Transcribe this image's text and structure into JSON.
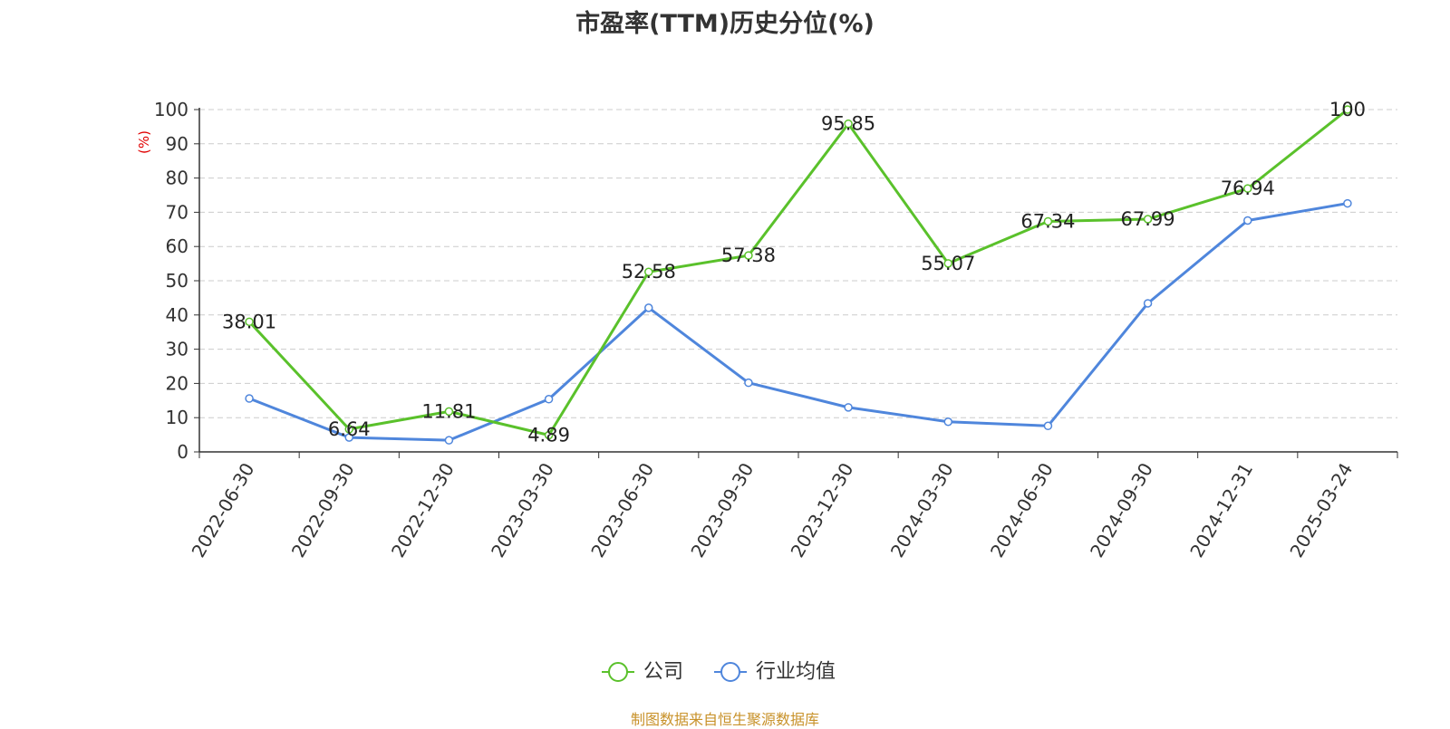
{
  "chart_data": {
    "type": "line",
    "title": "市盈率(TTM)历史分位(%)",
    "ylabel": "(%)",
    "ylim": [
      0,
      100
    ],
    "yticks": [
      0,
      10,
      20,
      30,
      40,
      50,
      60,
      70,
      80,
      90,
      100
    ],
    "grid": "horizontal-dashed",
    "legend_position": "bottom-center",
    "categories": [
      "2022-06-30",
      "2022-09-30",
      "2022-12-30",
      "2023-03-30",
      "2023-06-30",
      "2023-09-30",
      "2023-12-30",
      "2024-03-30",
      "2024-06-30",
      "2024-09-30",
      "2024-12-31",
      "2025-03-24"
    ],
    "series": [
      {
        "name": "公司",
        "color": "#5ac12b",
        "show_labels": true,
        "values": [
          38.01,
          6.64,
          11.81,
          4.89,
          52.58,
          57.38,
          95.85,
          55.07,
          67.34,
          67.99,
          76.94,
          100
        ],
        "labels": [
          "38.01",
          "6.64",
          "11.81",
          "4.89",
          "52.58",
          "57.38",
          "95.85",
          "55.07",
          "67.34",
          "67.99",
          "76.94",
          "100"
        ]
      },
      {
        "name": "行业均值",
        "color": "#4f86dc",
        "show_labels": false,
        "values": [
          15.6,
          4.2,
          3.4,
          15.4,
          42.1,
          20.2,
          13.0,
          8.8,
          7.6,
          43.4,
          67.6,
          72.6
        ]
      }
    ]
  },
  "source_note": "制图数据来自恒生聚源数据库"
}
